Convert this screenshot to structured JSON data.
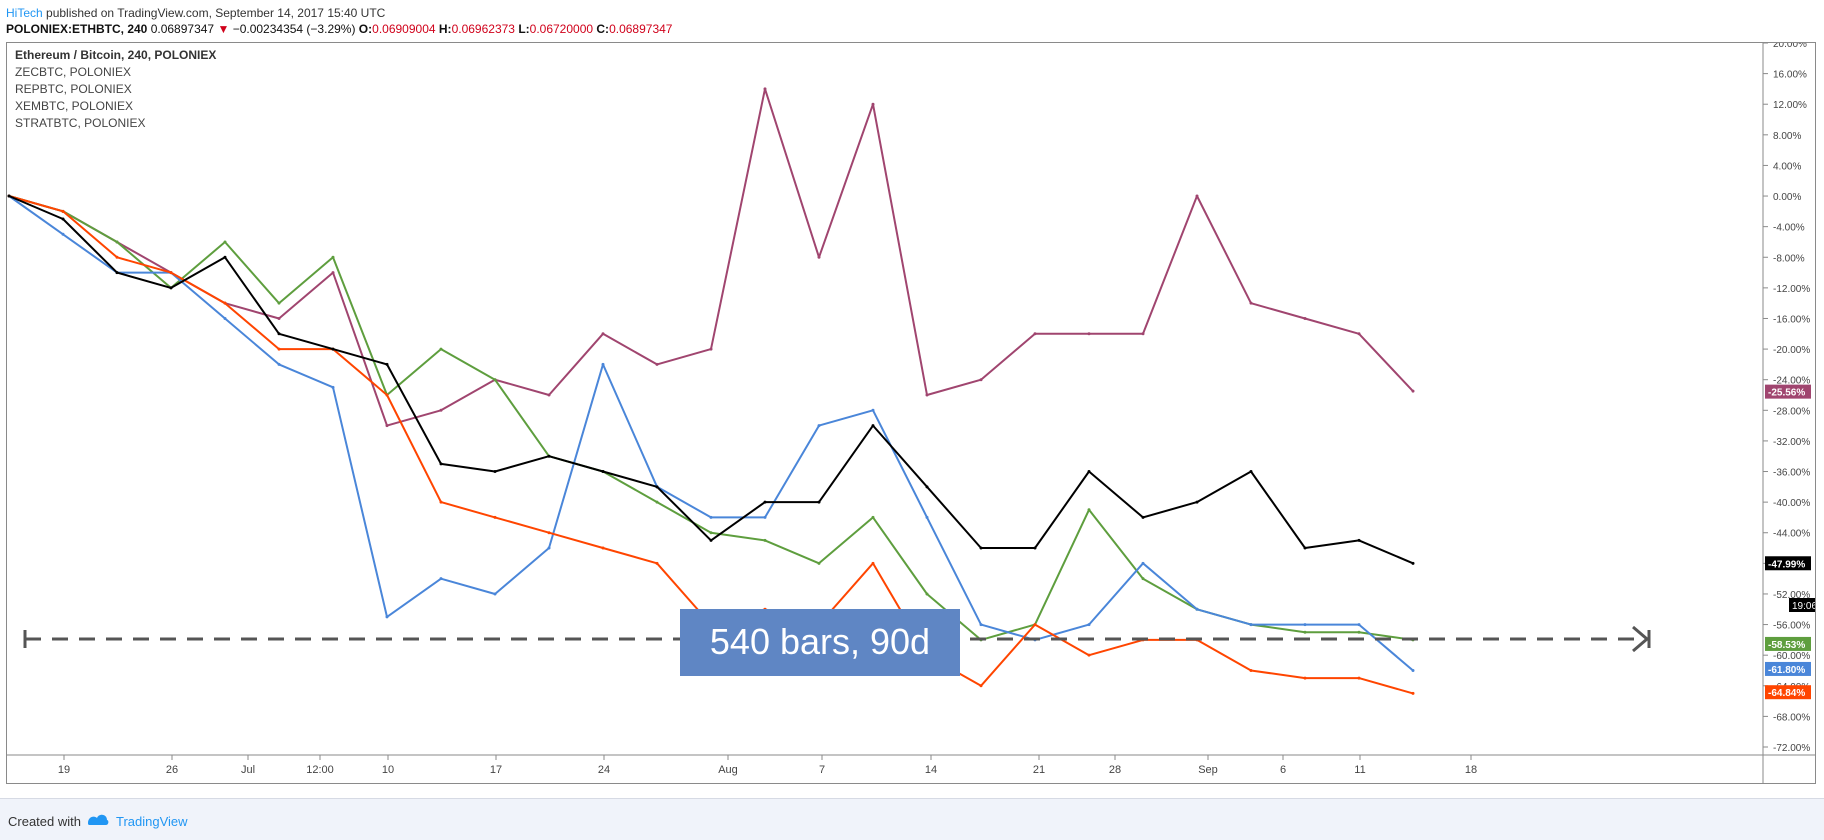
{
  "header": {
    "author": "HiTech",
    "published": " published on TradingView.com, September 14, 2017 15:40 UTC",
    "symbol": "POLONIEX:ETHBTC, 240",
    "last": "0.06897347",
    "change_arrow": "▼",
    "change": "−0.00234354 (−3.29%)",
    "o_label": "O:",
    "o": "0.06909004",
    "h_label": "H:",
    "h": "0.06962373",
    "l_label": "L:",
    "l": "0.06720000",
    "c_label": "C:",
    "c": "0.06897347"
  },
  "legend": [
    "Ethereum / Bitcoin, 240, POLONIEX",
    "ZECBTC, POLONIEX",
    "REPBTC, POLONIEX",
    "XEMBTC, POLONIEX",
    "STRATBTC, POLONIEX"
  ],
  "measure": {
    "text": "540 bars, 90d"
  },
  "time_label": "19:06",
  "footer": {
    "created": "Created with",
    "brand": "TradingView"
  },
  "colors": {
    "ethbtc": "#000000",
    "zecbtc": "#ff4500",
    "repbtc": "#4a86d9",
    "xembtc": "#5e9e3e",
    "stratbtc": "#a0456f",
    "measure_box": "#5f86c4"
  },
  "chart_data": {
    "type": "line",
    "scale": "percent",
    "ylim": [
      -72,
      20
    ],
    "yticks": [
      "20.00%",
      "16.00%",
      "12.00%",
      "8.00%",
      "4.00%",
      "0.00%",
      "-4.00%",
      "-8.00%",
      "-12.00%",
      "-16.00%",
      "-20.00%",
      "-24.00%",
      "-28.00%",
      "-32.00%",
      "-36.00%",
      "-40.00%",
      "-44.00%",
      "-48.00%",
      "-52.00%",
      "-56.00%",
      "-60.00%",
      "-64.00%",
      "-68.00%",
      "-72.00%"
    ],
    "xticks": [
      "19",
      "26",
      "Jul",
      "12:00",
      "10",
      "17",
      "24",
      "Aug",
      "7",
      "14",
      "21",
      "28",
      "Sep",
      "6",
      "11",
      "18"
    ],
    "x": [
      "Jun 16",
      "Jun 19",
      "Jun 23",
      "Jun 26",
      "Jun 30",
      "Jul 3",
      "Jul 7",
      "Jul 10",
      "Jul 14",
      "Jul 17",
      "Jul 21",
      "Jul 24",
      "Jul 28",
      "Jul 31",
      "Aug 4",
      "Aug 7",
      "Aug 11",
      "Aug 14",
      "Aug 18",
      "Aug 21",
      "Aug 25",
      "Aug 28",
      "Sep 1",
      "Sep 4",
      "Sep 8",
      "Sep 11",
      "Sep 14"
    ],
    "series": [
      {
        "name": "Ethereum / Bitcoin, 240, POLONIEX",
        "color": "#000000",
        "last_label": "-47.99%",
        "values": [
          0,
          -3,
          -10,
          -12,
          -8,
          -18,
          -20,
          -22,
          -35,
          -36,
          -34,
          -36,
          -38,
          -45,
          -40,
          -40,
          -30,
          -38,
          -46,
          -46,
          -36,
          -42,
          -40,
          -36,
          -46,
          -45,
          -48
        ]
      },
      {
        "name": "ZECBTC, POLONIEX",
        "color": "#ff4500",
        "last_label": "-64.84%",
        "values": [
          0,
          -2,
          -8,
          -10,
          -14,
          -20,
          -20,
          -26,
          -40,
          -42,
          -44,
          -46,
          -48,
          -56,
          -54,
          -56,
          -48,
          -60,
          -64,
          -56,
          -60,
          -58,
          -58,
          -62,
          -63,
          -63,
          -65
        ]
      },
      {
        "name": "REPBTC, POLONIEX",
        "color": "#4a86d9",
        "last_label": "-61.80%",
        "values": [
          0,
          -5,
          -10,
          -10,
          -16,
          -22,
          -25,
          -55,
          -50,
          -52,
          -46,
          -22,
          -38,
          -42,
          -42,
          -30,
          -28,
          -42,
          -56,
          -58,
          -56,
          -48,
          -54,
          -56,
          -56,
          -56,
          -62
        ]
      },
      {
        "name": "XEMBTC, POLONIEX",
        "color": "#5e9e3e",
        "last_label": "-58.53%",
        "values": [
          0,
          -2,
          -6,
          -12,
          -6,
          -14,
          -8,
          -26,
          -20,
          -24,
          -34,
          -36,
          -40,
          -44,
          -45,
          -48,
          -42,
          -52,
          -58,
          -56,
          -41,
          -50,
          -54,
          -56,
          -57,
          -57,
          -58
        ]
      },
      {
        "name": "STRATBTC, POLONIEX",
        "color": "#a0456f",
        "last_label": "-25.56%",
        "values": [
          0,
          -2,
          -6,
          -10,
          -14,
          -16,
          -10,
          -30,
          -28,
          -24,
          -26,
          -18,
          -22,
          -20,
          14,
          -8,
          12,
          -26,
          -24,
          -18,
          -18,
          -18,
          0,
          -14,
          -16,
          -18,
          -25.5
        ]
      }
    ]
  }
}
